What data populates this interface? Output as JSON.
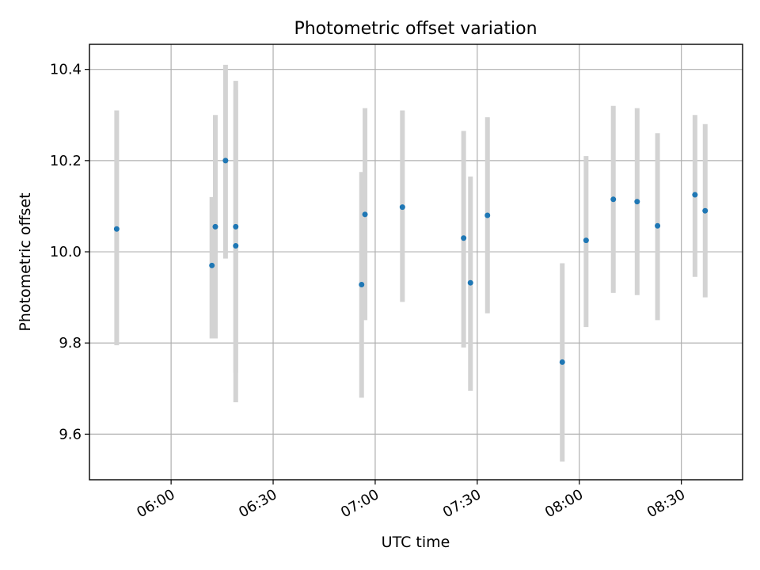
{
  "chart_data": {
    "type": "scatter",
    "title": "Photometric offset variation",
    "xlabel": "UTC time",
    "ylabel": "Photometric offset",
    "xlim": [
      "05:36",
      "08:48"
    ],
    "ylim": [
      9.5,
      10.455
    ],
    "grid": true,
    "x_ticks": [
      "06:00",
      "06:30",
      "07:00",
      "07:30",
      "08:00",
      "08:30"
    ],
    "y_ticks": [
      "9.6",
      "9.8",
      "10.0",
      "10.2",
      "10.4"
    ],
    "point_color": "#1f77b4",
    "errorbar_color": "#d3d3d3",
    "points": [
      {
        "time": "05:44",
        "y": 10.05,
        "err_low": 9.795,
        "err_high": 10.31
      },
      {
        "time": "06:12",
        "y": 9.97,
        "err_low": 9.81,
        "err_high": 10.12
      },
      {
        "time": "06:13",
        "y": 10.055,
        "err_low": 9.81,
        "err_high": 10.3
      },
      {
        "time": "06:16",
        "y": 10.2,
        "err_low": 9.985,
        "err_high": 10.41
      },
      {
        "time": "06:19",
        "y": 10.055,
        "err_low": 9.735,
        "err_high": 10.375
      },
      {
        "time": "06:19",
        "y": 10.013,
        "err_low": 9.67,
        "err_high": 10.355
      },
      {
        "time": "06:56",
        "y": 9.928,
        "err_low": 9.68,
        "err_high": 10.175
      },
      {
        "time": "06:57",
        "y": 10.082,
        "err_low": 9.85,
        "err_high": 10.315
      },
      {
        "time": "07:08",
        "y": 10.098,
        "err_low": 9.89,
        "err_high": 10.31
      },
      {
        "time": "07:26",
        "y": 10.03,
        "err_low": 9.79,
        "err_high": 10.265
      },
      {
        "time": "07:28",
        "y": 9.932,
        "err_low": 9.695,
        "err_high": 10.165
      },
      {
        "time": "07:33",
        "y": 10.08,
        "err_low": 9.865,
        "err_high": 10.295
      },
      {
        "time": "07:55",
        "y": 9.758,
        "err_low": 9.54,
        "err_high": 9.975
      },
      {
        "time": "08:02",
        "y": 10.025,
        "err_low": 9.835,
        "err_high": 10.21
      },
      {
        "time": "08:10",
        "y": 10.115,
        "err_low": 9.91,
        "err_high": 10.32
      },
      {
        "time": "08:17",
        "y": 10.11,
        "err_low": 9.905,
        "err_high": 10.315
      },
      {
        "time": "08:23",
        "y": 10.057,
        "err_low": 9.85,
        "err_high": 10.26
      },
      {
        "time": "08:34",
        "y": 10.125,
        "err_low": 9.945,
        "err_high": 10.3
      },
      {
        "time": "08:37",
        "y": 10.09,
        "err_low": 9.9,
        "err_high": 10.28
      }
    ]
  }
}
